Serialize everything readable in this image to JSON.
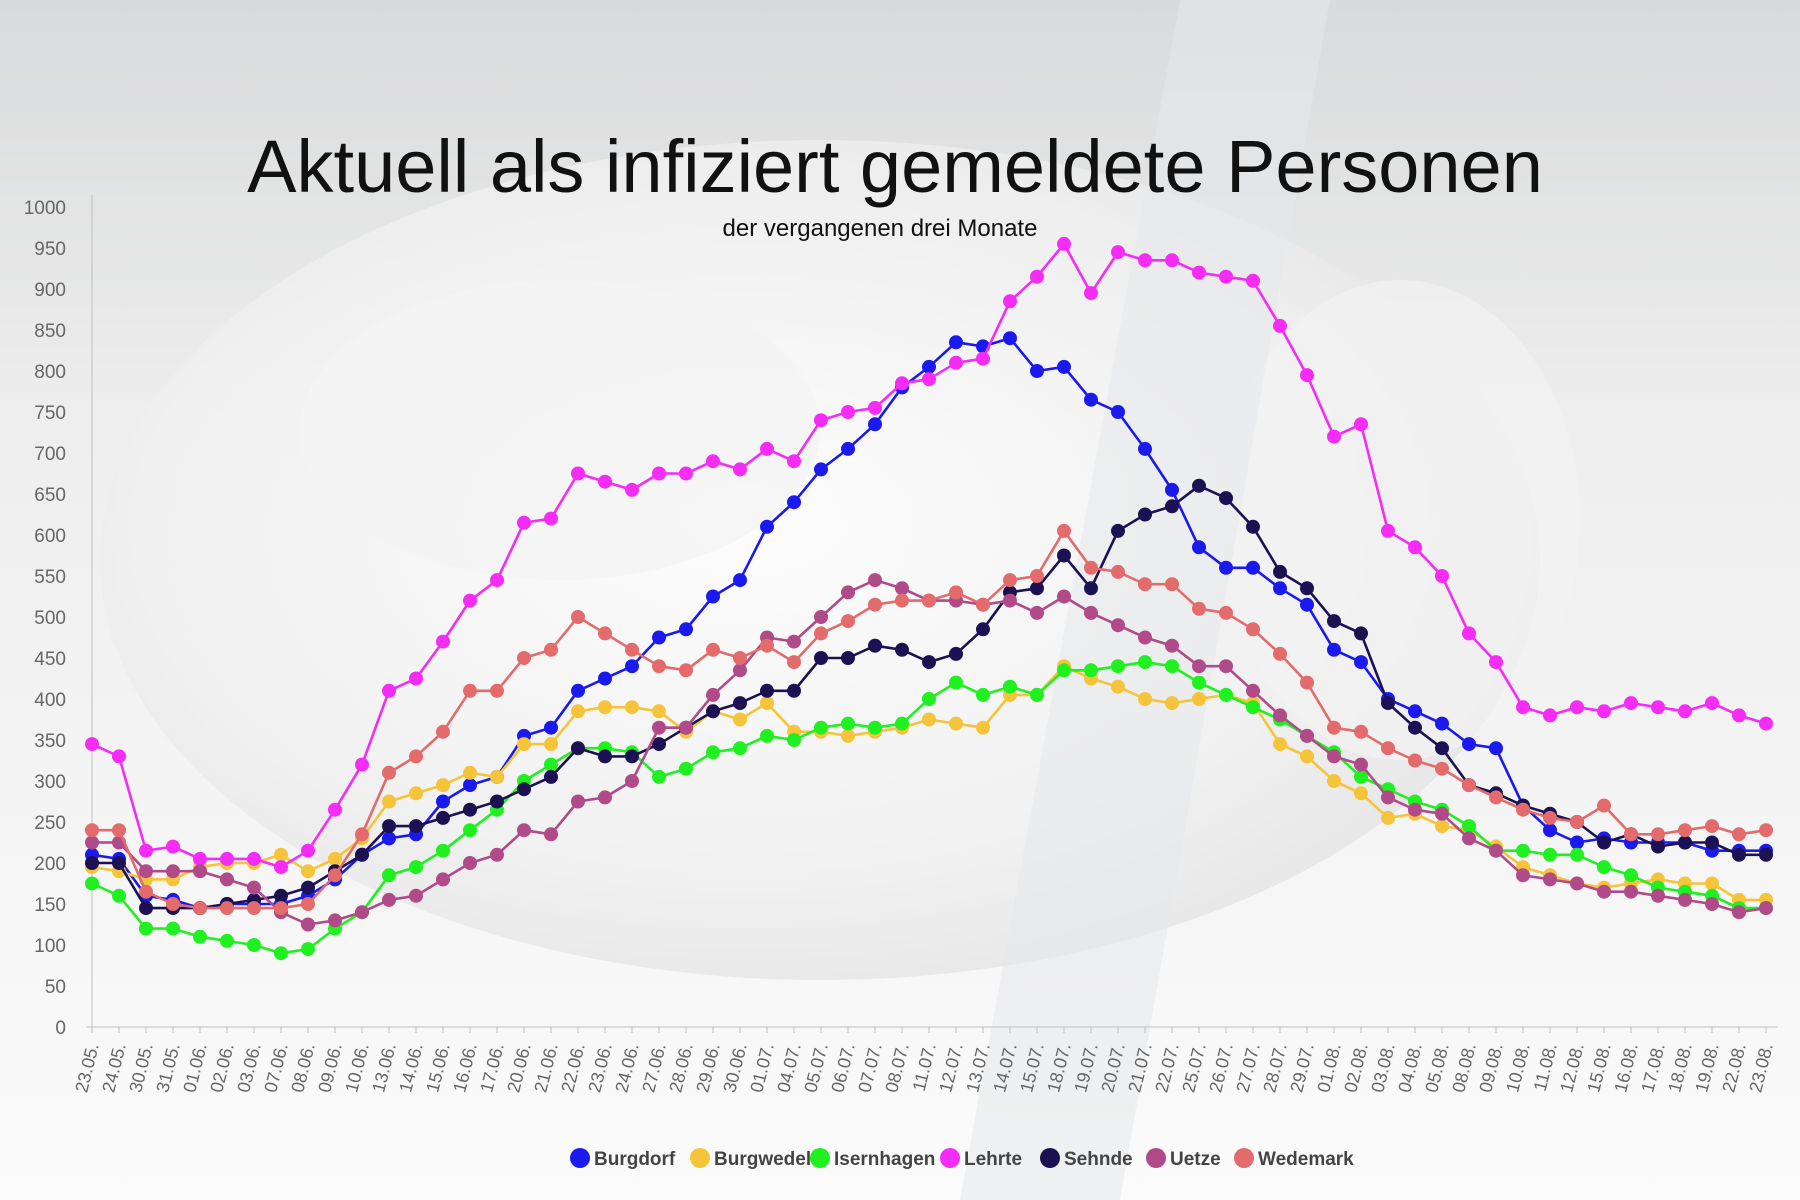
{
  "chart_data": {
    "type": "line",
    "title": "Aktuell als infiziert gemeldete Personen",
    "subtitle": "der vergangenen drei Monate",
    "xlabel": "",
    "ylabel": "",
    "ylim": [
      0,
      1000
    ],
    "yticks": [
      0,
      50,
      100,
      150,
      200,
      250,
      300,
      350,
      400,
      450,
      500,
      550,
      600,
      650,
      700,
      750,
      800,
      850,
      900,
      950,
      1000
    ],
    "grid": false,
    "legend_position": "bottom",
    "x": [
      "23.05.",
      "24.05.",
      "30.05.",
      "31.05.",
      "01.06.",
      "02.06.",
      "03.06.",
      "07.06.",
      "08.06.",
      "09.06.",
      "10.06.",
      "13.06.",
      "14.06.",
      "15.06.",
      "16.06.",
      "17.06.",
      "20.06.",
      "21.06.",
      "22.06.",
      "23.06.",
      "24.06.",
      "27.06.",
      "28.06.",
      "29.06.",
      "30.06.",
      "01.07.",
      "04.07.",
      "05.07.",
      "06.07.",
      "07.07.",
      "08.07.",
      "11.07.",
      "12.07.",
      "13.07.",
      "14.07.",
      "15.07.",
      "18.07.",
      "19.07.",
      "20.07.",
      "21.07.",
      "22.07.",
      "25.07.",
      "26.07.",
      "27.07.",
      "28.07.",
      "29.07.",
      "01.08.",
      "02.08.",
      "03.08.",
      "04.08.",
      "05.08.",
      "08.08.",
      "09.08.",
      "10.08.",
      "11.08.",
      "12.08.",
      "15.08.",
      "16.08.",
      "17.08.",
      "18.08.",
      "19.08.",
      "22.08.",
      "23.08."
    ],
    "series": [
      {
        "name": "Burgdorf",
        "color": "#1a1aee",
        "values": [
          210,
          205,
          160,
          155,
          145,
          150,
          150,
          150,
          160,
          180,
          210,
          230,
          235,
          275,
          295,
          305,
          355,
          365,
          410,
          425,
          440,
          475,
          485,
          525,
          545,
          610,
          640,
          680,
          705,
          735,
          780,
          805,
          835,
          830,
          840,
          800,
          805,
          765,
          750,
          705,
          655,
          585,
          560,
          560,
          535,
          515,
          460,
          445,
          400,
          385,
          370,
          345,
          340,
          270,
          240,
          225,
          230,
          225,
          225,
          225,
          215,
          215,
          215
        ]
      },
      {
        "name": "Burgwedel",
        "color": "#f5c43a",
        "values": [
          195,
          190,
          180,
          180,
          195,
          200,
          200,
          210,
          190,
          205,
          230,
          275,
          285,
          295,
          310,
          305,
          345,
          345,
          385,
          390,
          390,
          385,
          360,
          385,
          375,
          395,
          360,
          360,
          355,
          360,
          365,
          375,
          370,
          365,
          405,
          405,
          440,
          425,
          415,
          400,
          395,
          400,
          405,
          395,
          345,
          330,
          300,
          285,
          255,
          260,
          245,
          240,
          220,
          195,
          185,
          175,
          170,
          175,
          180,
          175,
          175,
          155,
          155
        ]
      },
      {
        "name": "Isernhagen",
        "color": "#1ff01f",
        "values": [
          175,
          160,
          120,
          120,
          110,
          105,
          100,
          90,
          95,
          120,
          140,
          185,
          195,
          215,
          240,
          265,
          300,
          320,
          340,
          340,
          335,
          305,
          315,
          335,
          340,
          355,
          350,
          365,
          370,
          365,
          370,
          400,
          420,
          405,
          415,
          405,
          435,
          435,
          440,
          445,
          440,
          420,
          405,
          390,
          375,
          355,
          335,
          305,
          290,
          275,
          265,
          245,
          215,
          215,
          210,
          210,
          195,
          185,
          170,
          165,
          160,
          145,
          145
        ]
      },
      {
        "name": "Lehrte",
        "color": "#f52cf5",
        "values": [
          345,
          330,
          215,
          220,
          205,
          205,
          205,
          195,
          215,
          265,
          320,
          410,
          425,
          470,
          520,
          545,
          615,
          620,
          675,
          665,
          655,
          675,
          675,
          690,
          680,
          705,
          690,
          740,
          750,
          755,
          785,
          790,
          810,
          815,
          885,
          915,
          955,
          895,
          945,
          935,
          935,
          920,
          915,
          910,
          855,
          795,
          720,
          735,
          605,
          585,
          550,
          480,
          445,
          390,
          380,
          390,
          385,
          395,
          390,
          385,
          395,
          380,
          370
        ]
      },
      {
        "name": "Sehnde",
        "color": "#1c1152",
        "values": [
          200,
          200,
          145,
          145,
          145,
          150,
          155,
          160,
          170,
          190,
          210,
          245,
          245,
          255,
          265,
          275,
          290,
          305,
          340,
          330,
          330,
          345,
          365,
          385,
          395,
          410,
          410,
          450,
          450,
          465,
          460,
          445,
          455,
          485,
          530,
          535,
          575,
          535,
          605,
          625,
          635,
          660,
          645,
          610,
          555,
          535,
          495,
          480,
          395,
          365,
          340,
          295,
          285,
          270,
          260,
          250,
          225,
          235,
          220,
          225,
          225,
          210,
          210
        ]
      },
      {
        "name": "Uetze",
        "color": "#b04a88",
        "values": [
          225,
          225,
          190,
          190,
          190,
          180,
          170,
          140,
          125,
          130,
          140,
          155,
          160,
          180,
          200,
          210,
          240,
          235,
          275,
          280,
          300,
          365,
          365,
          405,
          435,
          475,
          470,
          500,
          530,
          545,
          535,
          520,
          520,
          515,
          520,
          505,
          525,
          505,
          490,
          475,
          465,
          440,
          440,
          410,
          380,
          355,
          330,
          320,
          280,
          265,
          260,
          230,
          215,
          185,
          180,
          175,
          165,
          165,
          160,
          155,
          150,
          140,
          145
        ]
      },
      {
        "name": "Wedemark",
        "color": "#e36b6b",
        "values": [
          240,
          240,
          165,
          150,
          145,
          145,
          145,
          145,
          150,
          185,
          235,
          310,
          330,
          360,
          410,
          410,
          450,
          460,
          500,
          480,
          460,
          440,
          435,
          460,
          450,
          465,
          445,
          480,
          495,
          515,
          520,
          520,
          530,
          515,
          545,
          550,
          605,
          560,
          555,
          540,
          540,
          510,
          505,
          485,
          455,
          420,
          365,
          360,
          340,
          325,
          315,
          295,
          280,
          265,
          255,
          250,
          270,
          235,
          235,
          240,
          245,
          235,
          240
        ]
      }
    ]
  }
}
